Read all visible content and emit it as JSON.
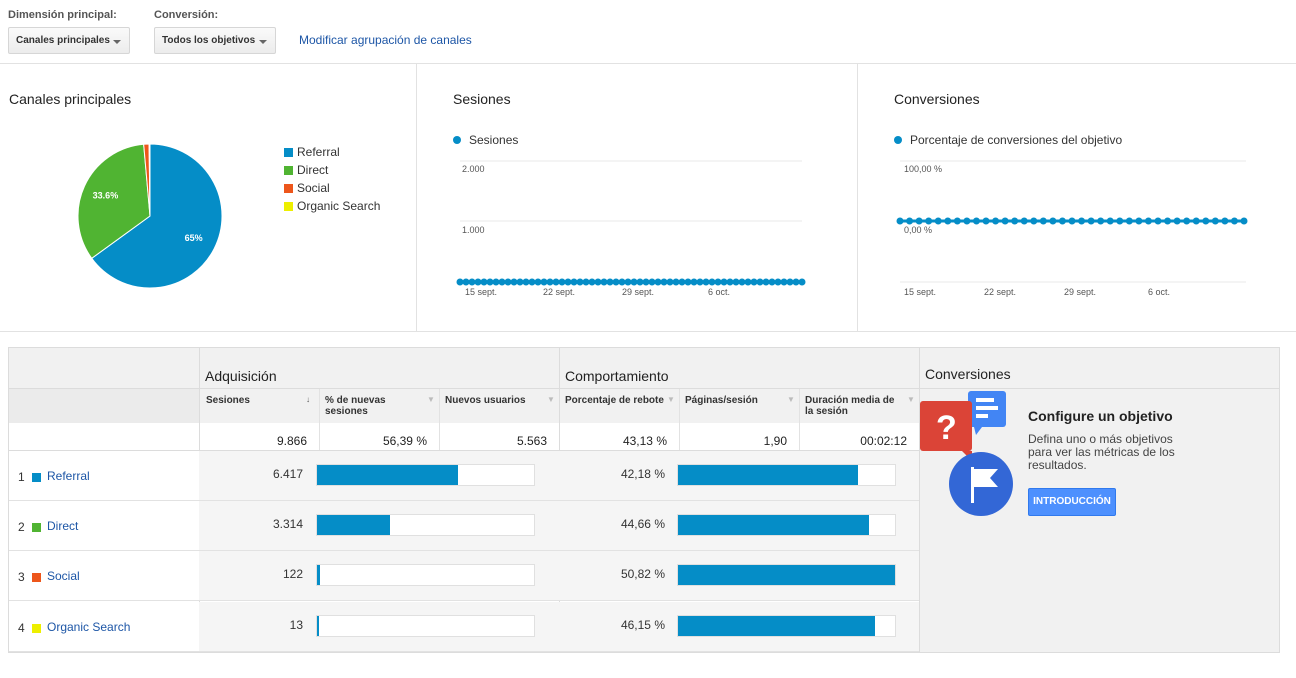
{
  "controls": {
    "dimension_label": "Dimensión principal:",
    "dimension_value": "Canales principales",
    "conversion_label": "Conversión:",
    "conversion_value": "Todos los objetivos",
    "modify_link": "Modificar agrupación de canales"
  },
  "pie_panel": {
    "title": "Canales principales",
    "legend": [
      {
        "label": "Referral",
        "color": "#058dc7"
      },
      {
        "label": "Direct",
        "color": "#50b432"
      },
      {
        "label": "Social",
        "color": "#ed561b"
      },
      {
        "label": "Organic Search",
        "color": "#edef00"
      }
    ],
    "chart_data": {
      "type": "pie",
      "labels": [
        "Referral",
        "Direct",
        "Social",
        "Organic Search"
      ],
      "values": [
        65,
        33.6,
        1.2,
        0.2
      ],
      "slice_labels": [
        "65%",
        "33.6%",
        "",
        ""
      ],
      "colors": [
        "#058dc7",
        "#50b432",
        "#ed561b",
        "#edef00"
      ]
    }
  },
  "sessions_panel": {
    "title": "Sesiones",
    "series_label": "Sesiones",
    "chart_data": {
      "type": "area",
      "series": [
        {
          "name": "Sesiones",
          "values": [
            0,
            0,
            0,
            0,
            0,
            0,
            0,
            0,
            0,
            0,
            0,
            0,
            0,
            0,
            0,
            0,
            0,
            0,
            0,
            0,
            0,
            0,
            0,
            0,
            0,
            0,
            0,
            0,
            0,
            0,
            0,
            0,
            0,
            0,
            0,
            0,
            0,
            0,
            0,
            0,
            0,
            0,
            0,
            0,
            0,
            0,
            0,
            0,
            0,
            0,
            0,
            0,
            0,
            0,
            0,
            0,
            0,
            0
          ]
        }
      ],
      "y_ticks": [
        "2.000",
        "1.000"
      ],
      "x_ticks": [
        "15 sept.",
        "22 sept.",
        "29 sept.",
        "6 oct."
      ],
      "ylim": [
        0,
        2000
      ]
    }
  },
  "conversions_panel": {
    "title": "Conversiones",
    "series_label": "Porcentaje de conversiones del objetivo",
    "chart_data": {
      "type": "line",
      "series": [
        {
          "name": "Porcentaje de conversiones del objetivo",
          "values": [
            0,
            0,
            0,
            0,
            0,
            0,
            0,
            0,
            0,
            0,
            0,
            0,
            0,
            0,
            0,
            0,
            0,
            0,
            0,
            0,
            0,
            0,
            0,
            0,
            0,
            0,
            0,
            0,
            0,
            0,
            0,
            0,
            0,
            0,
            0,
            0,
            0
          ]
        }
      ],
      "y_ticks": [
        "100,00 %",
        "0,00 %"
      ],
      "x_ticks": [
        "15 sept.",
        "22 sept.",
        "29 sept.",
        "6 oct."
      ],
      "ylim": [
        0,
        100
      ]
    }
  },
  "table": {
    "acquisition_title": "Adquisición",
    "behavior_title": "Comportamiento",
    "conversions_title": "Conversiones",
    "columns": {
      "sessions": "Sesiones",
      "new_sessions": "% de nuevas sesiones",
      "new_users": "Nuevos usuarios",
      "bounce": "Porcentaje de rebote",
      "pages": "Páginas/sesión",
      "duration": "Duración media de la sesión"
    },
    "totals": {
      "sessions": "9.866",
      "new_sessions": "56,39 %",
      "new_users": "5.563",
      "bounce": "43,13 %",
      "pages": "1,90",
      "duration": "00:02:12"
    },
    "rows": [
      {
        "num": "1",
        "label": "Referral",
        "color": "#058dc7",
        "sessions": "6.417",
        "new_sessions_frac": 0.65,
        "bounce": "42,18 %",
        "bounce_frac": 0.83
      },
      {
        "num": "2",
        "label": "Direct",
        "color": "#50b432",
        "sessions": "3.314",
        "new_sessions_frac": 0.336,
        "bounce": "44,66 %",
        "bounce_frac": 0.88
      },
      {
        "num": "3",
        "label": "Social",
        "color": "#ed561b",
        "sessions": "122",
        "new_sessions_frac": 0.012,
        "bounce": "50,82 %",
        "bounce_frac": 1.0
      },
      {
        "num": "4",
        "label": "Organic Search",
        "color": "#edef00",
        "sessions": "13",
        "new_sessions_frac": 0.002,
        "bounce": "46,15 %",
        "bounce_frac": 0.908
      }
    ]
  },
  "goal": {
    "title": "Configure un objetivo",
    "desc_lines": [
      "Defina uno o más objetivos",
      "para ver las métricas de los",
      "resultados."
    ],
    "button": "INTRODUCCIÓN"
  }
}
